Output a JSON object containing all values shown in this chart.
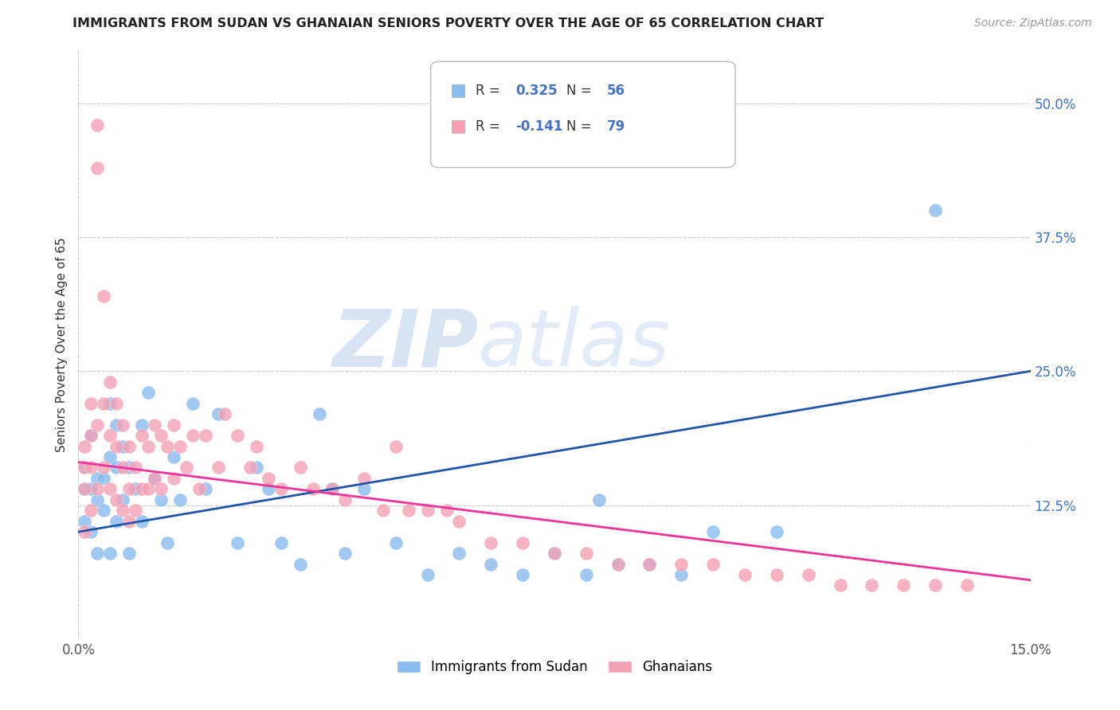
{
  "title": "IMMIGRANTS FROM SUDAN VS GHANAIAN SENIORS POVERTY OVER THE AGE OF 65 CORRELATION CHART",
  "source": "Source: ZipAtlas.com",
  "ylabel_label": "Seniors Poverty Over the Age of 65",
  "xlim": [
    0.0,
    0.15
  ],
  "ylim": [
    0.0,
    0.55
  ],
  "sudan_color": "#88BBEE",
  "ghanaian_color": "#F4A0B5",
  "sudan_line_color": "#2255AA",
  "ghanaian_line_color": "#EE3399",
  "R_sudan": 0.325,
  "N_sudan": 56,
  "R_ghanaian": -0.141,
  "N_ghanaian": 79,
  "legend_label_sudan": "Immigrants from Sudan",
  "legend_label_ghanaian": "Ghanaians",
  "background_color": "#FFFFFF",
  "grid_color": "#CCCCCC",
  "yticks": [
    0.125,
    0.25,
    0.375,
    0.5
  ],
  "ytick_labels": [
    "12.5%",
    "25.0%",
    "37.5%",
    "50.0%"
  ],
  "xticks": [
    0.0,
    0.15
  ],
  "xtick_labels": [
    "0.0%",
    "15.0%"
  ],
  "sudan_line_y0": 0.1,
  "sudan_line_y1": 0.25,
  "ghanaian_line_y0": 0.165,
  "ghanaian_line_y1": 0.055,
  "sudan_points_x": [
    0.001,
    0.001,
    0.001,
    0.002,
    0.002,
    0.002,
    0.003,
    0.003,
    0.003,
    0.004,
    0.004,
    0.005,
    0.005,
    0.005,
    0.006,
    0.006,
    0.006,
    0.007,
    0.007,
    0.008,
    0.008,
    0.009,
    0.01,
    0.01,
    0.011,
    0.012,
    0.013,
    0.014,
    0.015,
    0.016,
    0.018,
    0.02,
    0.022,
    0.025,
    0.028,
    0.03,
    0.032,
    0.035,
    0.038,
    0.04,
    0.042,
    0.045,
    0.05,
    0.055,
    0.06,
    0.065,
    0.07,
    0.075,
    0.08,
    0.082,
    0.085,
    0.09,
    0.095,
    0.1,
    0.11,
    0.135
  ],
  "sudan_points_y": [
    0.16,
    0.14,
    0.11,
    0.19,
    0.14,
    0.1,
    0.15,
    0.13,
    0.08,
    0.15,
    0.12,
    0.22,
    0.17,
    0.08,
    0.2,
    0.16,
    0.11,
    0.18,
    0.13,
    0.16,
    0.08,
    0.14,
    0.2,
    0.11,
    0.23,
    0.15,
    0.13,
    0.09,
    0.17,
    0.13,
    0.22,
    0.14,
    0.21,
    0.09,
    0.16,
    0.14,
    0.09,
    0.07,
    0.21,
    0.14,
    0.08,
    0.14,
    0.09,
    0.06,
    0.08,
    0.07,
    0.06,
    0.08,
    0.06,
    0.13,
    0.07,
    0.07,
    0.06,
    0.1,
    0.1,
    0.4
  ],
  "ghanaian_points_x": [
    0.001,
    0.001,
    0.001,
    0.001,
    0.002,
    0.002,
    0.002,
    0.002,
    0.003,
    0.003,
    0.003,
    0.003,
    0.004,
    0.004,
    0.004,
    0.005,
    0.005,
    0.005,
    0.006,
    0.006,
    0.006,
    0.007,
    0.007,
    0.007,
    0.008,
    0.008,
    0.008,
    0.009,
    0.009,
    0.01,
    0.01,
    0.011,
    0.011,
    0.012,
    0.012,
    0.013,
    0.013,
    0.014,
    0.015,
    0.015,
    0.016,
    0.017,
    0.018,
    0.019,
    0.02,
    0.022,
    0.023,
    0.025,
    0.027,
    0.028,
    0.03,
    0.032,
    0.035,
    0.037,
    0.04,
    0.042,
    0.045,
    0.048,
    0.05,
    0.052,
    0.055,
    0.058,
    0.06,
    0.065,
    0.07,
    0.075,
    0.08,
    0.085,
    0.09,
    0.095,
    0.1,
    0.105,
    0.11,
    0.115,
    0.12,
    0.125,
    0.13,
    0.135,
    0.14
  ],
  "ghanaian_points_y": [
    0.18,
    0.16,
    0.14,
    0.1,
    0.22,
    0.19,
    0.16,
    0.12,
    0.48,
    0.44,
    0.2,
    0.14,
    0.32,
    0.22,
    0.16,
    0.24,
    0.19,
    0.14,
    0.22,
    0.18,
    0.13,
    0.2,
    0.16,
    0.12,
    0.18,
    0.14,
    0.11,
    0.16,
    0.12,
    0.19,
    0.14,
    0.18,
    0.14,
    0.2,
    0.15,
    0.19,
    0.14,
    0.18,
    0.2,
    0.15,
    0.18,
    0.16,
    0.19,
    0.14,
    0.19,
    0.16,
    0.21,
    0.19,
    0.16,
    0.18,
    0.15,
    0.14,
    0.16,
    0.14,
    0.14,
    0.13,
    0.15,
    0.12,
    0.18,
    0.12,
    0.12,
    0.12,
    0.11,
    0.09,
    0.09,
    0.08,
    0.08,
    0.07,
    0.07,
    0.07,
    0.07,
    0.06,
    0.06,
    0.06,
    0.05,
    0.05,
    0.05,
    0.05,
    0.05
  ]
}
